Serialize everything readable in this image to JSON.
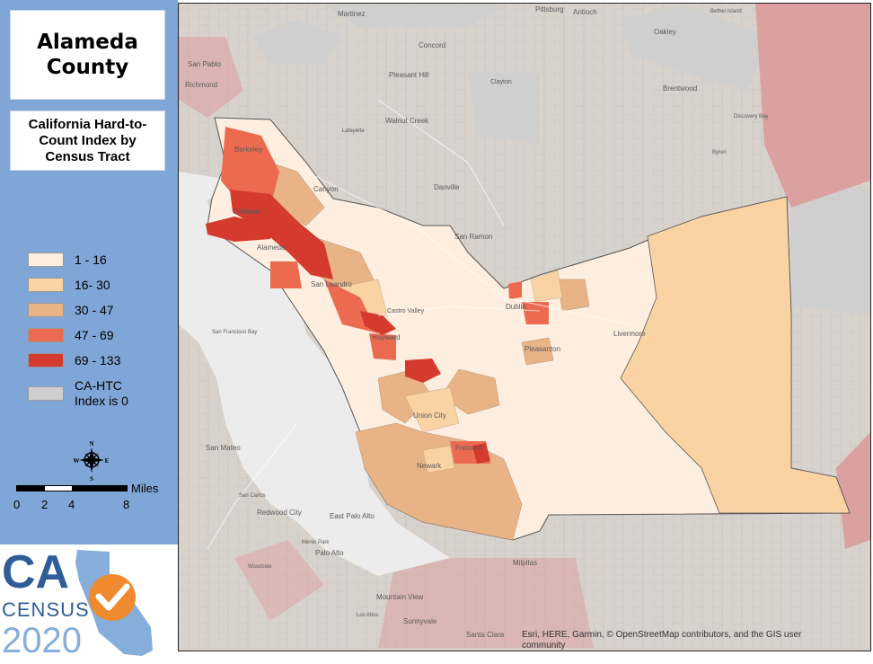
{
  "title": "Alameda County",
  "subtitle": "California Hard-to-Count Index by Census Tract",
  "legend": [
    {
      "label": "1 - 16",
      "color": "#fdeee0"
    },
    {
      "label": "16- 30",
      "color": "#f9d3a4"
    },
    {
      "label": "30 - 47",
      "color": "#e8b487"
    },
    {
      "label": "47 - 69",
      "color": "#ec6a4f"
    },
    {
      "label": "69 - 133",
      "color": "#d53a2e"
    },
    {
      "label": "CA-HTC Index is 0",
      "color": "#cfcfcf"
    }
  ],
  "scalebar": {
    "unit": "Miles",
    "ticks": [
      "0",
      "2",
      "4",
      "8"
    ]
  },
  "compass": {
    "n": "N",
    "s": "S",
    "e": "E",
    "w": "W",
    "icon": "compass-rose-icon"
  },
  "place_labels": [
    "Martinez",
    "Pittsburg",
    "Antioch",
    "Bethel Island",
    "Concord",
    "Oakley",
    "San Pablo",
    "Richmond",
    "Pleasant Hill",
    "Clayton",
    "Brentwood",
    "Walnut Creek",
    "Lafayette",
    "Discovery Bay",
    "Byron",
    "Berkeley",
    "Canyon",
    "Danville",
    "Oakland",
    "Alameda",
    "San Ramon",
    "San Leandro",
    "Dublin",
    "Castro Valley",
    "Livermore",
    "San Francisco Bay",
    "Hayward",
    "Pleasanton",
    "Union City",
    "San Mateo",
    "Fremont",
    "Newark",
    "San Carlos",
    "Redwood City",
    "East Palo Alto",
    "Menlo Park",
    "Palo Alto",
    "Woodside",
    "Milpitas",
    "Mountain View",
    "Los Altos",
    "Sunnyvale",
    "Santa Clara"
  ],
  "attribution": "Esri, HERE, Garmin, © OpenStreetMap contributors, and the GIS user community",
  "logo": {
    "ca": "CA",
    "census": "CENSUS",
    "year": "2020"
  },
  "colors": {
    "sidebar": "#7fa6d6",
    "base": "#d8d2cc",
    "highlight_county": "#fdeee0",
    "east_tract": "#f9d3a4",
    "water": "#ececec"
  }
}
